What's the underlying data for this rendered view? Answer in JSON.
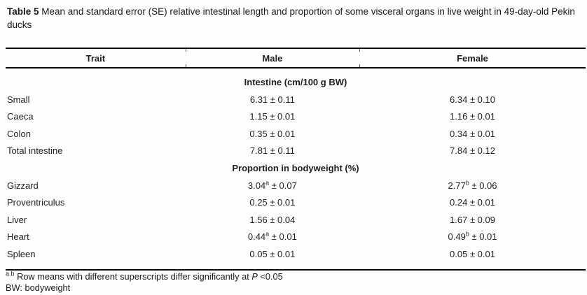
{
  "title": {
    "label": "Table 5",
    "text": " Mean and standard error (SE) relative intestinal length and proportion of some visceral organs in live weight in 49-day-old Pekin ducks"
  },
  "table": {
    "columns": {
      "trait": "Trait",
      "male": "Male",
      "female": "Female"
    },
    "sections": [
      {
        "heading": "Intestine (cm/100 g BW)",
        "rows": [
          {
            "trait": "Small",
            "male": {
              "mean": "6.31",
              "sup": "",
              "se": " ± 0.11"
            },
            "female": {
              "mean": "6.34",
              "sup": "",
              "se": " ± 0.10"
            }
          },
          {
            "trait": "Caeca",
            "male": {
              "mean": "1.15",
              "sup": "",
              "se": " ± 0.01"
            },
            "female": {
              "mean": "1.16",
              "sup": "",
              "se": " ± 0.01"
            }
          },
          {
            "trait": "Colon",
            "male": {
              "mean": "0.35",
              "sup": "",
              "se": " ± 0.01"
            },
            "female": {
              "mean": "0.34",
              "sup": "",
              "se": " ± 0.01"
            }
          },
          {
            "trait": "Total intestine",
            "male": {
              "mean": "7.81",
              "sup": "",
              "se": " ± 0.11"
            },
            "female": {
              "mean": "7.84",
              "sup": "",
              "se": " ± 0.12"
            }
          }
        ]
      },
      {
        "heading": "Proportion in bodyweight (%)",
        "rows": [
          {
            "trait": "Gizzard",
            "male": {
              "mean": "3.04",
              "sup": "a",
              "se": " ± 0.07"
            },
            "female": {
              "mean": "2.77",
              "sup": "b",
              "se": " ± 0.06"
            }
          },
          {
            "trait": "Proventriculus",
            "male": {
              "mean": "0.25",
              "sup": "",
              "se": " ± 0.01"
            },
            "female": {
              "mean": "0.24",
              "sup": "",
              "se": " ± 0.01"
            }
          },
          {
            "trait": "Liver",
            "male": {
              "mean": "1.56",
              "sup": "",
              "se": " ± 0.04"
            },
            "female": {
              "mean": "1.67",
              "sup": "",
              "se": " ± 0.09"
            }
          },
          {
            "trait": "Heart",
            "male": {
              "mean": "0.44",
              "sup": "a",
              "se": " ± 0.01"
            },
            "female": {
              "mean": "0.49",
              "sup": "b",
              "se": " ± 0.01"
            }
          },
          {
            "trait": "Spleen",
            "male": {
              "mean": "0.05",
              "sup": "",
              "se": " ± 0.01"
            },
            "female": {
              "mean": "0.05",
              "sup": "",
              "se": " ± 0.01"
            }
          }
        ]
      }
    ]
  },
  "footnotes": {
    "superscript": "a.b",
    "line1_text": " Row means with different superscripts differ significantly at ",
    "line1_p": "P",
    "line1_tail": " <0.05",
    "line2": "BW: bodyweight"
  },
  "colors": {
    "text": "#1e1e1e",
    "rule": "#0a0a0a",
    "background": "#fefefe"
  }
}
